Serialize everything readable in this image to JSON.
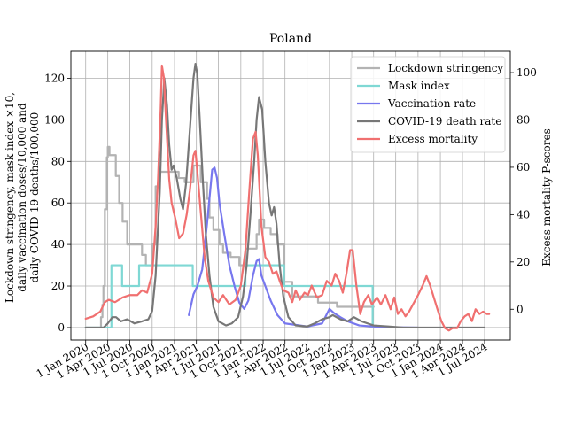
{
  "chart_data": {
    "type": "line",
    "title": "Poland",
    "ylabel_left": [
      "Lockdown stringency, mask index ×10,",
      "daily vaccination doses/10,000 and",
      "daily COVID-19 deaths/100,000"
    ],
    "ylabel_right": "Excess mortality P-scores",
    "ylim_left": [
      -6,
      133
    ],
    "ylim_right": [
      -13,
      109
    ],
    "yticks_left": [
      0,
      20,
      40,
      60,
      80,
      100,
      120
    ],
    "yticks_right": [
      0,
      20,
      40,
      60,
      80,
      100
    ],
    "xlim": [
      "2019-11-01",
      "2024-10-15"
    ],
    "xticks": [
      {
        "date": "2020-01-01",
        "label": "1 Jan 2020"
      },
      {
        "date": "2020-04-01",
        "label": "1 Apr 2020"
      },
      {
        "date": "2020-07-01",
        "label": "1 Jul 2020"
      },
      {
        "date": "2020-10-01",
        "label": "1 Oct 2020"
      },
      {
        "date": "2021-01-01",
        "label": "1 Jan 2021"
      },
      {
        "date": "2021-04-01",
        "label": "1 Apr 2021"
      },
      {
        "date": "2021-07-01",
        "label": "1 Jul 2021"
      },
      {
        "date": "2021-10-01",
        "label": "1 Oct 2021"
      },
      {
        "date": "2022-01-01",
        "label": "1 Jan 2022"
      },
      {
        "date": "2022-04-01",
        "label": "1 Apr 2022"
      },
      {
        "date": "2022-07-01",
        "label": "1 Jul 2022"
      },
      {
        "date": "2022-10-01",
        "label": "1 Oct 2022"
      },
      {
        "date": "2023-01-01",
        "label": "1 Jan 2023"
      },
      {
        "date": "2023-04-01",
        "label": "1 Apr 2023"
      },
      {
        "date": "2023-07-01",
        "label": "1 Jul 2023"
      },
      {
        "date": "2023-10-01",
        "label": "1 Oct 2023"
      },
      {
        "date": "2024-01-01",
        "label": "1 Jan 2024"
      },
      {
        "date": "2024-04-01",
        "label": "1 Apr 2024"
      },
      {
        "date": "2024-07-01",
        "label": "1 Jul 2024"
      }
    ],
    "grid": true,
    "legend_position": "top-right",
    "series": [
      {
        "name": "Lockdown stringency",
        "axis": "left",
        "color": "#b3b3b3",
        "step": true,
        "points": [
          [
            "2020-01-01",
            0
          ],
          [
            "2020-03-04",
            5
          ],
          [
            "2020-03-10",
            11
          ],
          [
            "2020-03-14",
            20
          ],
          [
            "2020-03-20",
            57
          ],
          [
            "2020-03-28",
            82
          ],
          [
            "2020-04-01",
            87
          ],
          [
            "2020-04-08",
            83
          ],
          [
            "2020-05-04",
            73
          ],
          [
            "2020-05-18",
            60
          ],
          [
            "2020-06-01",
            51
          ],
          [
            "2020-06-20",
            40
          ],
          [
            "2020-08-01",
            40
          ],
          [
            "2020-08-20",
            35
          ],
          [
            "2020-09-05",
            30
          ],
          [
            "2020-10-01",
            40
          ],
          [
            "2020-10-15",
            68
          ],
          [
            "2020-11-01",
            75
          ],
          [
            "2020-12-28",
            75
          ],
          [
            "2021-01-18",
            72
          ],
          [
            "2021-02-12",
            70
          ],
          [
            "2021-03-20",
            78
          ],
          [
            "2021-04-19",
            70
          ],
          [
            "2021-05-15",
            62
          ],
          [
            "2021-05-25",
            53
          ],
          [
            "2021-06-10",
            47
          ],
          [
            "2021-07-05",
            40
          ],
          [
            "2021-07-20",
            36
          ],
          [
            "2021-08-20",
            34
          ],
          [
            "2021-09-25",
            30
          ],
          [
            "2021-10-20",
            38
          ],
          [
            "2021-12-05",
            45
          ],
          [
            "2021-12-15",
            52
          ],
          [
            "2022-01-05",
            48
          ],
          [
            "2022-02-01",
            45
          ],
          [
            "2022-03-01",
            40
          ],
          [
            "2022-03-28",
            22
          ],
          [
            "2022-05-01",
            15
          ],
          [
            "2022-08-15",
            12
          ],
          [
            "2022-11-01",
            10
          ],
          [
            "2023-01-01",
            10
          ],
          [
            "2023-04-01",
            10
          ]
        ]
      },
      {
        "name": "Mask index",
        "axis": "left",
        "color": "#7fd8d4",
        "step": true,
        "points": [
          [
            "2020-01-01",
            0
          ],
          [
            "2020-04-16",
            30
          ],
          [
            "2020-05-30",
            20
          ],
          [
            "2020-08-08",
            30
          ],
          [
            "2021-03-17",
            20
          ],
          [
            "2021-10-20",
            30
          ],
          [
            "2022-03-28",
            20
          ],
          [
            "2023-03-28",
            0
          ],
          [
            "2023-04-01",
            0
          ]
        ]
      },
      {
        "name": "Vaccination rate",
        "axis": "left",
        "color": "#7777ee",
        "step": false,
        "points": [
          [
            "2021-03-01",
            6
          ],
          [
            "2021-03-20",
            16
          ],
          [
            "2021-04-05",
            20
          ],
          [
            "2021-04-25",
            28
          ],
          [
            "2021-05-15",
            50
          ],
          [
            "2021-05-28",
            66
          ],
          [
            "2021-06-05",
            76
          ],
          [
            "2021-06-15",
            77
          ],
          [
            "2021-06-25",
            72
          ],
          [
            "2021-07-05",
            60
          ],
          [
            "2021-07-25",
            45
          ],
          [
            "2021-08-15",
            30
          ],
          [
            "2021-09-05",
            20
          ],
          [
            "2021-09-25",
            12
          ],
          [
            "2021-10-15",
            9
          ],
          [
            "2021-11-01",
            13
          ],
          [
            "2021-11-20",
            25
          ],
          [
            "2021-12-05",
            32
          ],
          [
            "2021-12-15",
            33
          ],
          [
            "2021-12-25",
            25
          ],
          [
            "2022-01-10",
            20
          ],
          [
            "2022-02-01",
            13
          ],
          [
            "2022-03-01",
            6
          ],
          [
            "2022-04-01",
            2
          ],
          [
            "2022-07-01",
            0.5
          ],
          [
            "2022-09-01",
            2
          ],
          [
            "2022-10-01",
            9
          ],
          [
            "2022-10-20",
            7
          ],
          [
            "2022-11-15",
            5
          ],
          [
            "2022-12-15",
            3
          ],
          [
            "2023-02-01",
            1
          ],
          [
            "2023-05-01",
            0.2
          ],
          [
            "2023-10-01",
            0
          ]
        ]
      },
      {
        "name": "COVID-19 death rate",
        "axis": "left",
        "color": "#777777",
        "step": false,
        "points": [
          [
            "2020-01-01",
            0
          ],
          [
            "2020-03-15",
            0
          ],
          [
            "2020-04-01",
            2
          ],
          [
            "2020-04-20",
            5
          ],
          [
            "2020-05-05",
            5
          ],
          [
            "2020-05-25",
            3
          ],
          [
            "2020-06-20",
            4
          ],
          [
            "2020-07-20",
            2
          ],
          [
            "2020-08-20",
            3
          ],
          [
            "2020-09-15",
            4
          ],
          [
            "2020-10-01",
            8
          ],
          [
            "2020-10-15",
            25
          ],
          [
            "2020-11-01",
            65
          ],
          [
            "2020-11-10",
            100
          ],
          [
            "2020-11-20",
            120
          ],
          [
            "2020-12-01",
            107
          ],
          [
            "2020-12-10",
            88
          ],
          [
            "2020-12-20",
            76
          ],
          [
            "2020-12-28",
            78
          ],
          [
            "2021-01-10",
            72
          ],
          [
            "2021-01-25",
            62
          ],
          [
            "2021-02-05",
            57
          ],
          [
            "2021-02-18",
            70
          ],
          [
            "2021-03-05",
            95
          ],
          [
            "2021-03-20",
            120
          ],
          [
            "2021-03-28",
            127
          ],
          [
            "2021-04-05",
            122
          ],
          [
            "2021-04-15",
            100
          ],
          [
            "2021-04-28",
            70
          ],
          [
            "2021-05-10",
            45
          ],
          [
            "2021-05-25",
            25
          ],
          [
            "2021-06-10",
            10
          ],
          [
            "2021-07-01",
            3
          ],
          [
            "2021-08-01",
            1
          ],
          [
            "2021-08-25",
            2
          ],
          [
            "2021-09-20",
            5
          ],
          [
            "2021-10-10",
            15
          ],
          [
            "2021-10-25",
            30
          ],
          [
            "2021-11-10",
            55
          ],
          [
            "2021-11-25",
            80
          ],
          [
            "2021-12-05",
            100
          ],
          [
            "2021-12-15",
            111
          ],
          [
            "2021-12-28",
            105
          ],
          [
            "2022-01-10",
            80
          ],
          [
            "2022-01-25",
            60
          ],
          [
            "2022-02-05",
            54
          ],
          [
            "2022-02-15",
            58
          ],
          [
            "2022-02-25",
            50
          ],
          [
            "2022-03-10",
            30
          ],
          [
            "2022-03-25",
            15
          ],
          [
            "2022-04-15",
            5
          ],
          [
            "2022-05-15",
            1
          ],
          [
            "2022-07-01",
            0.5
          ],
          [
            "2022-08-01",
            2
          ],
          [
            "2022-09-01",
            4
          ],
          [
            "2022-10-01",
            5
          ],
          [
            "2022-10-15",
            6
          ],
          [
            "2022-11-15",
            4
          ],
          [
            "2022-12-15",
            3
          ],
          [
            "2023-01-10",
            5
          ],
          [
            "2023-02-10",
            3
          ],
          [
            "2023-04-01",
            1
          ],
          [
            "2023-06-01",
            0.5
          ],
          [
            "2023-08-01",
            0
          ],
          [
            "2024-01-01",
            0
          ],
          [
            "2024-07-01",
            0
          ]
        ]
      },
      {
        "name": "Excess mortality",
        "axis": "right",
        "color": "#f07070",
        "step": false,
        "points": [
          [
            "2020-01-01",
            -4
          ],
          [
            "2020-02-01",
            -3
          ],
          [
            "2020-03-01",
            -1
          ],
          [
            "2020-03-20",
            3
          ],
          [
            "2020-04-05",
            4
          ],
          [
            "2020-05-01",
            3
          ],
          [
            "2020-06-01",
            5
          ],
          [
            "2020-07-01",
            6
          ],
          [
            "2020-08-01",
            6
          ],
          [
            "2020-08-20",
            8
          ],
          [
            "2020-09-10",
            7
          ],
          [
            "2020-10-01",
            15
          ],
          [
            "2020-10-15",
            35
          ],
          [
            "2020-10-25",
            55
          ],
          [
            "2020-11-05",
            85
          ],
          [
            "2020-11-10",
            103
          ],
          [
            "2020-11-18",
            98
          ],
          [
            "2020-11-28",
            78
          ],
          [
            "2020-12-10",
            55
          ],
          [
            "2020-12-20",
            45
          ],
          [
            "2021-01-05",
            38
          ],
          [
            "2021-01-20",
            30
          ],
          [
            "2021-02-05",
            32
          ],
          [
            "2021-02-20",
            40
          ],
          [
            "2021-03-05",
            50
          ],
          [
            "2021-03-20",
            65
          ],
          [
            "2021-03-28",
            67
          ],
          [
            "2021-04-05",
            58
          ],
          [
            "2021-04-20",
            40
          ],
          [
            "2021-05-05",
            22
          ],
          [
            "2021-05-20",
            12
          ],
          [
            "2021-06-10",
            5
          ],
          [
            "2021-07-01",
            3
          ],
          [
            "2021-07-20",
            6
          ],
          [
            "2021-08-15",
            2
          ],
          [
            "2021-09-10",
            4
          ],
          [
            "2021-10-01",
            10
          ],
          [
            "2021-10-20",
            25
          ],
          [
            "2021-11-05",
            50
          ],
          [
            "2021-11-20",
            72
          ],
          [
            "2021-12-01",
            75
          ],
          [
            "2021-12-10",
            65
          ],
          [
            "2021-12-25",
            35
          ],
          [
            "2022-01-10",
            22
          ],
          [
            "2022-01-25",
            20
          ],
          [
            "2022-02-10",
            15
          ],
          [
            "2022-02-25",
            16
          ],
          [
            "2022-03-10",
            12
          ],
          [
            "2022-03-25",
            8
          ],
          [
            "2022-04-15",
            7
          ],
          [
            "2022-05-01",
            3
          ],
          [
            "2022-05-15",
            8
          ],
          [
            "2022-06-01",
            4
          ],
          [
            "2022-06-20",
            7
          ],
          [
            "2022-07-05",
            6
          ],
          [
            "2022-07-20",
            10
          ],
          [
            "2022-08-10",
            5
          ],
          [
            "2022-09-01",
            6
          ],
          [
            "2022-09-20",
            12
          ],
          [
            "2022-10-10",
            10
          ],
          [
            "2022-10-25",
            15
          ],
          [
            "2022-11-10",
            12
          ],
          [
            "2022-11-25",
            7
          ],
          [
            "2022-12-10",
            15
          ],
          [
            "2022-12-25",
            25
          ],
          [
            "2023-01-05",
            25
          ],
          [
            "2023-01-20",
            10
          ],
          [
            "2023-02-05",
            -2
          ],
          [
            "2023-02-20",
            3
          ],
          [
            "2023-03-10",
            6
          ],
          [
            "2023-03-25",
            2
          ],
          [
            "2023-04-15",
            5
          ],
          [
            "2023-05-01",
            2
          ],
          [
            "2023-05-20",
            6
          ],
          [
            "2023-06-10",
            0
          ],
          [
            "2023-06-25",
            5
          ],
          [
            "2023-07-10",
            -2
          ],
          [
            "2023-07-25",
            0
          ],
          [
            "2023-08-10",
            -3
          ],
          [
            "2023-08-25",
            -1
          ],
          [
            "2023-09-10",
            2
          ],
          [
            "2023-10-01",
            6
          ],
          [
            "2023-10-20",
            10
          ],
          [
            "2023-11-05",
            14
          ],
          [
            "2023-11-20",
            10
          ],
          [
            "2023-12-05",
            5
          ],
          [
            "2023-12-20",
            0
          ],
          [
            "2024-01-05",
            -5
          ],
          [
            "2024-01-20",
            -8
          ],
          [
            "2024-02-05",
            -9
          ],
          [
            "2024-02-20",
            -8
          ],
          [
            "2024-03-10",
            -8
          ],
          [
            "2024-03-25",
            -5
          ],
          [
            "2024-04-10",
            -3
          ],
          [
            "2024-04-25",
            -2
          ],
          [
            "2024-05-10",
            -5
          ],
          [
            "2024-05-25",
            0
          ],
          [
            "2024-06-10",
            -2
          ],
          [
            "2024-06-25",
            -1
          ],
          [
            "2024-07-10",
            -2
          ],
          [
            "2024-07-20",
            -2
          ]
        ]
      }
    ]
  }
}
